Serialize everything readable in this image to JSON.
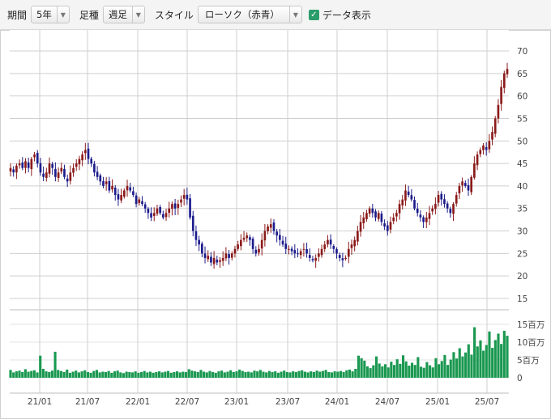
{
  "toolbar": {
    "period_label": "期間",
    "period_value": "5年",
    "interval_label": "足種",
    "interval_value": "週足",
    "style_label": "スタイル",
    "style_value": "ローソク（赤青）",
    "data_toggle_label": "データ表示",
    "data_toggle_checked": true,
    "check_glyph": "✓",
    "dropdown_glyph": "▼"
  },
  "colors": {
    "up": "#8b1a1a",
    "down": "#1c1c8c",
    "volume": "#1a9850",
    "grid": "#cfcfcf"
  },
  "chart_data": {
    "type": "candlestick",
    "x_ticks": [
      "21/01",
      "21/07",
      "22/01",
      "22/07",
      "23/01",
      "23/07",
      "24/01",
      "24/07",
      "25/01",
      "25/07"
    ],
    "price_axis": {
      "ticks": [
        "70",
        "65",
        "60",
        "55",
        "50",
        "45",
        "40",
        "35",
        "30",
        "25",
        "20",
        "15"
      ],
      "ylim": [
        15,
        70
      ]
    },
    "volume_axis": {
      "ticks": [
        "15百万",
        "10百万",
        "5百万",
        "0"
      ],
      "ylim": [
        0,
        15
      ]
    },
    "weekly_close": [
      44,
      43,
      44.5,
      45,
      44,
      45.5,
      44,
      46,
      47,
      45,
      43,
      42,
      43,
      45,
      44,
      42,
      43,
      44,
      42,
      41,
      43,
      44,
      45,
      46,
      47,
      48,
      46,
      45,
      43,
      42,
      41,
      40,
      41,
      39,
      40,
      38,
      37,
      38,
      39,
      40,
      39,
      38,
      36,
      37,
      36,
      35,
      34,
      33,
      34,
      35,
      34,
      33,
      34,
      35,
      36,
      35,
      36,
      37,
      38,
      37,
      33,
      30,
      28,
      27,
      25,
      24,
      24.5,
      23,
      24,
      23,
      23.5,
      24,
      25,
      24,
      25,
      26,
      27,
      28,
      28.5,
      29,
      28,
      26,
      25,
      26,
      28,
      30,
      31,
      31.5,
      30,
      29,
      28,
      27,
      26,
      26,
      25.5,
      25,
      25,
      25.5,
      26,
      25,
      24,
      23.5,
      24,
      25,
      26,
      27,
      28,
      27,
      26,
      25,
      24,
      23.5,
      24,
      26,
      27,
      28,
      30,
      32,
      33,
      34,
      35,
      34,
      33,
      34,
      32,
      31,
      30,
      32,
      33,
      34,
      36,
      37,
      39,
      38,
      37,
      35,
      34,
      33,
      32,
      33,
      34,
      35,
      36,
      38,
      37,
      36,
      35,
      34,
      36,
      38,
      40,
      41,
      40,
      39,
      42,
      45,
      47,
      48,
      49,
      48,
      50,
      52,
      55,
      58,
      62,
      65,
      66
    ],
    "weekly_volume_millions": [
      2.2,
      1.5,
      1.8,
      2,
      1.6,
      2.4,
      1.7,
      1.9,
      2.1,
      1.5,
      6.2,
      2.5,
      1.8,
      1.6,
      2,
      7.3,
      2.2,
      1.9,
      1.6,
      2.3,
      1.4,
      1.7,
      2,
      1.5,
      1.8,
      2.1,
      1.6,
      1.4,
      1.9,
      2.2,
      1.5,
      1.7,
      1.6,
      1.9,
      1.4,
      1.8,
      2,
      1.5,
      1.3,
      1.7,
      1.6,
      1.5,
      1.8,
      1.4,
      1.6,
      1.9,
      1.5,
      1.7,
      1.4,
      1.6,
      1.8,
      1.5,
      1.7,
      1.9,
      1.4,
      1.6,
      1.8,
      1.5,
      1.7,
      1.6,
      2.4,
      2,
      1.8,
      1.6,
      2.2,
      1.7,
      1.5,
      1.9,
      1.6,
      1.4,
      1.8,
      2,
      1.5,
      1.7,
      2.1,
      1.6,
      1.8,
      2.3,
      1.9,
      1.6,
      1.7,
      1.5,
      2,
      1.8,
      2.2,
      1.7,
      1.5,
      1.9,
      1.6,
      1.8,
      1.4,
      1.7,
      2,
      1.6,
      1.5,
      1.8,
      1.6,
      1.9,
      2.1,
      1.7,
      1.5,
      1.8,
      1.6,
      2,
      1.7,
      1.9,
      2.2,
      1.6,
      1.5,
      1.8,
      1.7,
      1.9,
      1.6,
      2.1,
      2.3,
      1.8,
      2.5,
      6.2,
      5.5,
      4.8,
      3.2,
      2.7,
      3.5,
      6,
      4,
      3.2,
      3.8,
      2.9,
      4.5,
      3.6,
      5.2,
      3.9,
      6.3,
      4.6,
      3.4,
      4.2,
      3.6,
      5.8,
      3.1,
      2.8,
      4.4,
      3.5,
      2.9,
      5.5,
      3.8,
      4.7,
      6.4,
      3.6,
      5.1,
      7.2,
      5.4,
      8.3,
      6,
      7.1,
      9.4,
      6.5,
      14.2,
      8.8,
      10.5,
      7.6,
      9.2,
      13,
      8.4,
      10.6,
      12.4,
      9.5,
      13.2,
      11.8
    ]
  }
}
